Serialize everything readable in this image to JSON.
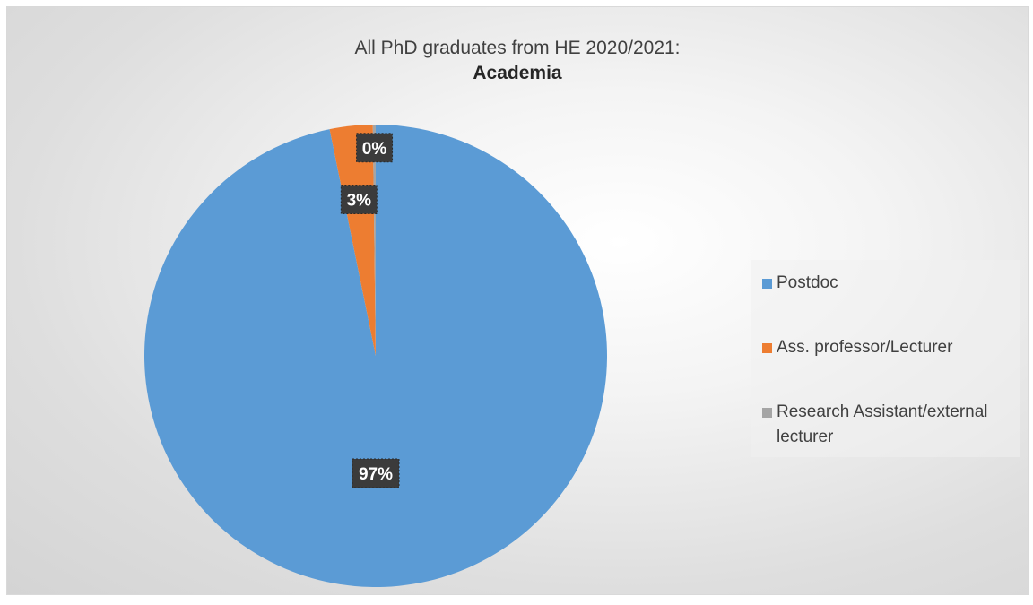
{
  "chart_data": {
    "type": "pie",
    "title": "All PhD graduates from HE 2020/2021:",
    "subtitle": "Academia",
    "legend_position": "right",
    "slices": [
      {
        "name": "Postdoc",
        "value": 97,
        "label": "97%",
        "color": "#5b9bd5"
      },
      {
        "name": "Ass. professor/Lecturer",
        "value": 3,
        "label": "3%",
        "color": "#ed7d31"
      },
      {
        "name": "Research Assistant/external lecturer",
        "value": 0.2,
        "label": "0%",
        "color": "#a5a5a5"
      }
    ]
  }
}
